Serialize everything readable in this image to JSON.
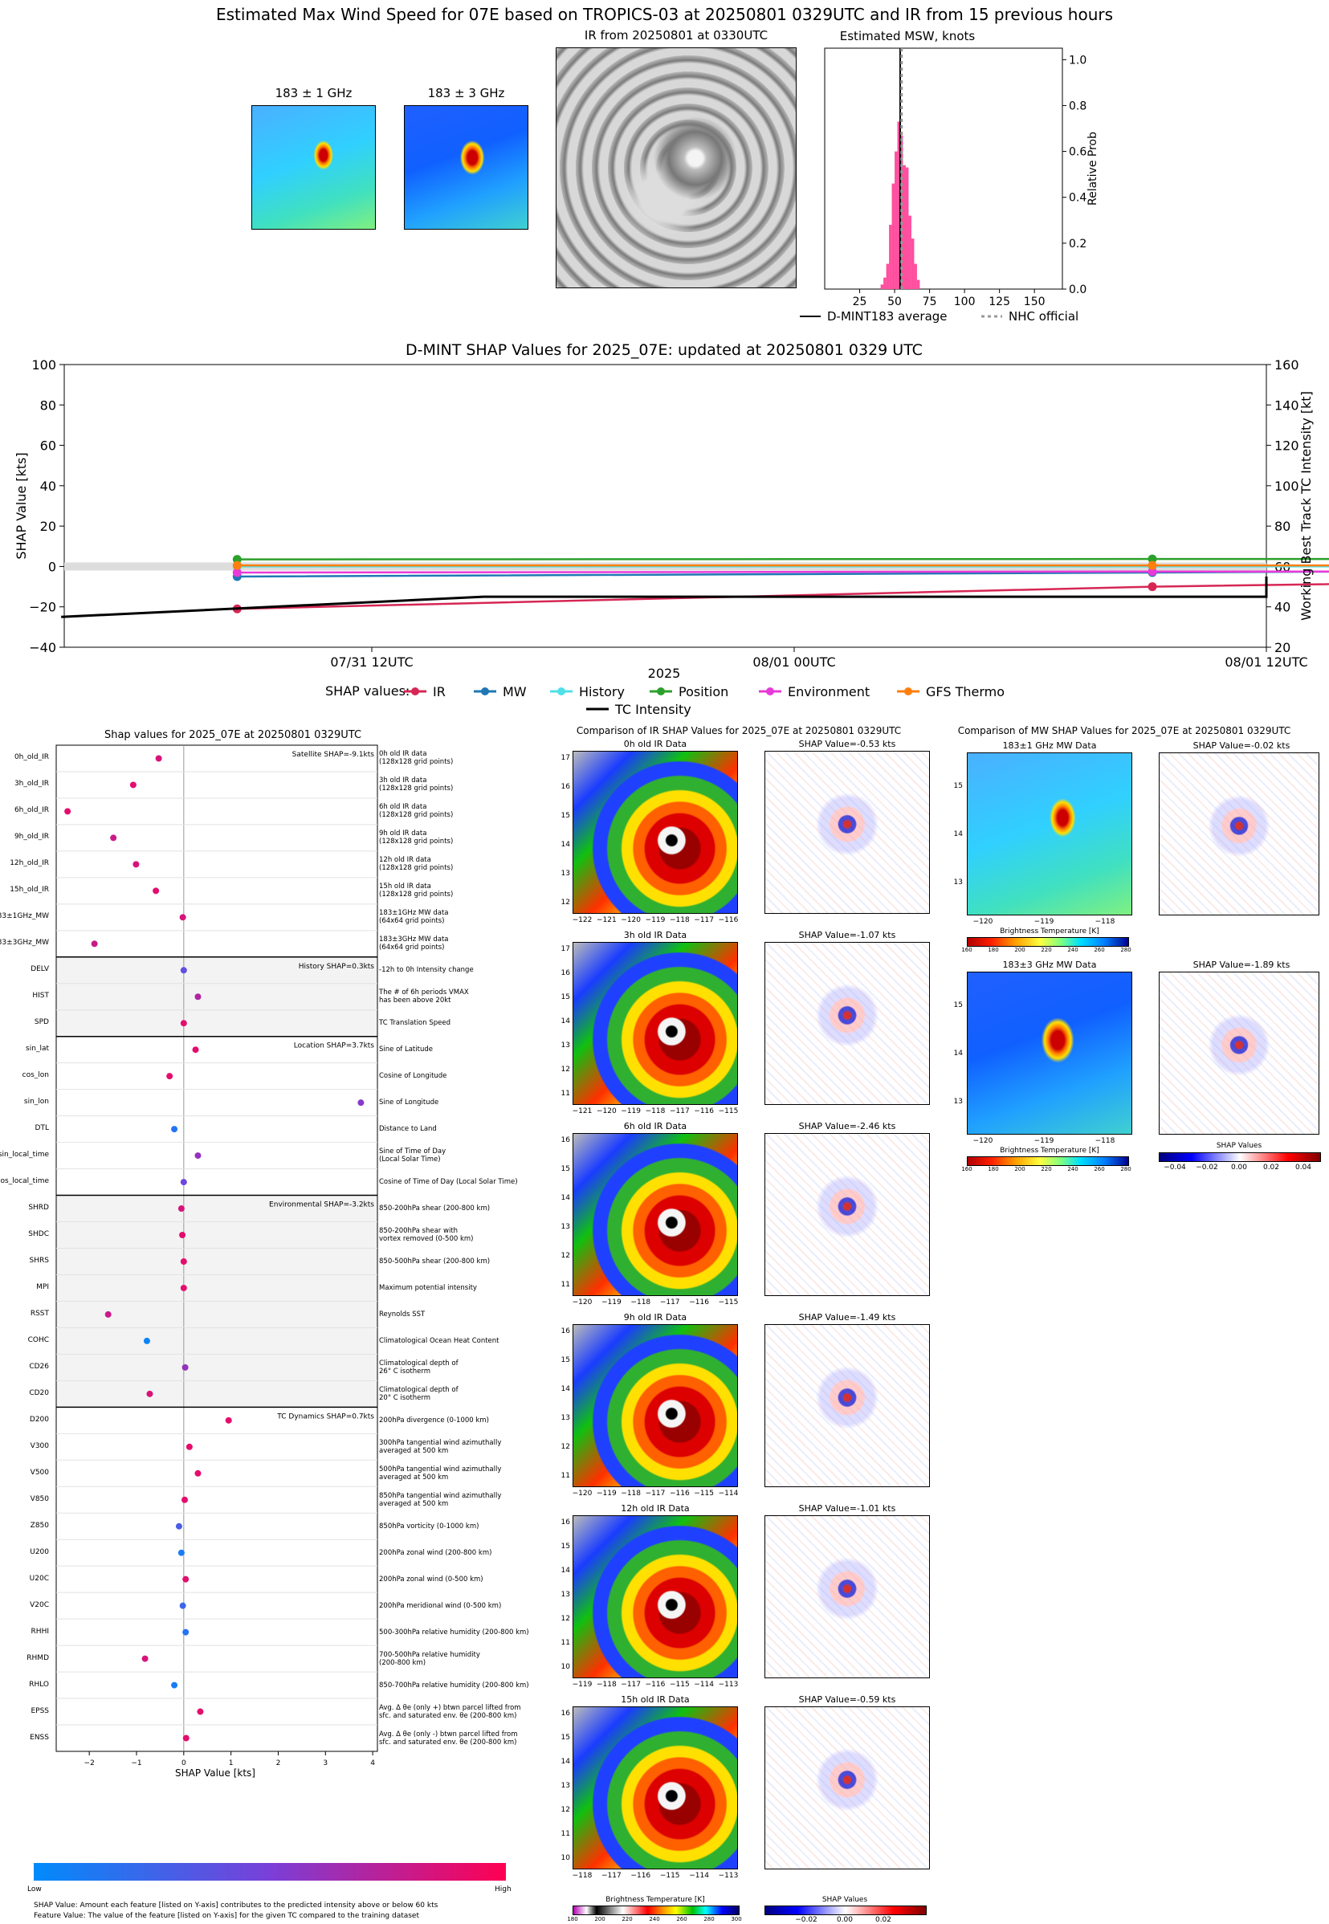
{
  "colors": {
    "IR": "#d62754",
    "MW": "#1f77b4",
    "History": "#4fe0e8",
    "Position": "#2ca02c",
    "Environment": "#e83ad8",
    "GFS Thermo": "#ff7f0e",
    "TC Intensity": "#000000",
    "hist_bar": "#ff4f9e",
    "feature_low": "#008bfb",
    "feature_high": "#ff0052"
  },
  "header": {
    "main_title": "Estimated Max Wind Speed for 07E based on TROPICS-03 at 20250801 0329UTC and IR from 15 previous hours",
    "mw1_title": "183 ± 1 GHz",
    "mw3_title": "183 ± 3 GHz",
    "ir_title": "IR from 20250801 at 0330UTC"
  },
  "histogram": {
    "title": "Estimated MSW, knots",
    "ylabel": "Relative Prob",
    "x_ticks": [
      "25",
      "50",
      "75",
      "100",
      "125",
      "150"
    ],
    "y_ticks": [
      "0.0",
      "0.2",
      "0.4",
      "0.6",
      "0.8",
      "1.0"
    ],
    "legend_avg": "D-MINT183 average",
    "legend_nhc": "NHC official"
  },
  "timeline": {
    "title": "D-MINT SHAP Values for 2025_07E: updated at 20250801 0329 UTC",
    "ylabel_left": "SHAP Value [kts]",
    "ylabel_right": "Working Best Track TC Intensity [kt]",
    "xlabel": "2025",
    "x_ticks": [
      "07/31 12UTC",
      "08/01 00UTC",
      "08/01 12UTC"
    ],
    "y_left_ticks": [
      "100",
      "80",
      "60",
      "40",
      "20",
      "0",
      "−20",
      "−40"
    ],
    "y_right_ticks": [
      "160",
      "140",
      "120",
      "100",
      "80",
      "60",
      "40",
      "20"
    ],
    "legend_prefix": "SHAP values:",
    "legend_labels": [
      "IR",
      "MW",
      "History",
      "Position",
      "Environment",
      "GFS Thermo",
      "TC Intensity"
    ]
  },
  "shap_panel": {
    "title": "Shap values for 2025_07E at 20250801 0329UTC",
    "xlabel": "SHAP Value [kts]",
    "x_ticks": [
      "−2",
      "−1",
      "0",
      "1",
      "2",
      "3",
      "4"
    ],
    "group_labels": [
      "Satellite SHAP=-9.1kts",
      "History SHAP=0.3kts",
      "Location SHAP=3.7kts",
      "Environmental SHAP=-3.2kts",
      "TC Dynamics SHAP=0.7kts"
    ],
    "colorbar_low": "Low",
    "colorbar_high": "High",
    "footnote1": "SHAP Value: Amount each feature [listed on Y-axis] contributes to the predicted intensity above or below 60 kts",
    "footnote2": "Feature Value: The value of the feature [listed on Y-axis] for the given TC compared to the training dataset"
  },
  "ir_compare": {
    "title": "Comparison of IR SHAP Values for 2025_07E at 20250801 0329UTC",
    "rows": [
      {
        "data_title": "0h old IR Data",
        "shap_title": "SHAP Value=-0.53 kts",
        "x_ticks": [
          "−122",
          "−121",
          "−120",
          "−119",
          "−118",
          "−117",
          "−116"
        ],
        "y_ticks": [
          "17",
          "16",
          "15",
          "14",
          "13",
          "12"
        ]
      },
      {
        "data_title": "3h old IR Data",
        "shap_title": "SHAP Value=-1.07 kts",
        "x_ticks": [
          "−121",
          "−120",
          "−119",
          "−118",
          "−117",
          "−116",
          "−115"
        ],
        "y_ticks": [
          "17",
          "16",
          "15",
          "14",
          "13",
          "12",
          "11"
        ]
      },
      {
        "data_title": "6h old IR Data",
        "shap_title": "SHAP Value=-2.46 kts",
        "x_ticks": [
          "−120",
          "−119",
          "−118",
          "−117",
          "−116",
          "−115"
        ],
        "y_ticks": [
          "16",
          "15",
          "14",
          "13",
          "12",
          "11"
        ]
      },
      {
        "data_title": "9h old IR Data",
        "shap_title": "SHAP Value=-1.49 kts",
        "x_ticks": [
          "−120",
          "−119",
          "−118",
          "−117",
          "−116",
          "−115",
          "−114"
        ],
        "y_ticks": [
          "16",
          "15",
          "14",
          "13",
          "12",
          "11"
        ]
      },
      {
        "data_title": "12h old IR Data",
        "shap_title": "SHAP Value=-1.01 kts",
        "x_ticks": [
          "−119",
          "−118",
          "−117",
          "−116",
          "−115",
          "−114",
          "−113"
        ],
        "y_ticks": [
          "16",
          "15",
          "14",
          "13",
          "12",
          "11",
          "10"
        ]
      },
      {
        "data_title": "15h old IR Data",
        "shap_title": "SHAP Value=-0.59 kts",
        "x_ticks": [
          "−118",
          "−117",
          "−116",
          "−115",
          "−114",
          "−113"
        ],
        "y_ticks": [
          "16",
          "15",
          "14",
          "13",
          "12",
          "11",
          "10"
        ]
      }
    ],
    "cbar_label": "Brightness Temperature [K]",
    "cbar_ticks": [
      "180",
      "200",
      "220",
      "240",
      "260",
      "280",
      "300"
    ],
    "shap_cbar_label": "SHAP Values",
    "shap_cbar_ticks": [
      "−0.02",
      "0.00",
      "0.02"
    ]
  },
  "mw_compare": {
    "title": "Comparison of MW SHAP Values for 2025_07E at 20250801 0329UTC",
    "rows": [
      {
        "data_title": "183±1 GHz MW Data",
        "shap_title": "SHAP Value=-0.02 kts"
      },
      {
        "data_title": "183±3 GHz MW Data",
        "shap_title": "SHAP Value=-1.89 kts"
      }
    ],
    "x_ticks": [
      "−120",
      "−119",
      "−118"
    ],
    "y_ticks": [
      "15",
      "14",
      "13"
    ],
    "cbar_label": "Brightness Temperature [K]",
    "cbar_ticks": [
      "160",
      "180",
      "200",
      "220",
      "240",
      "260",
      "280"
    ],
    "shap_cbar_label": "SHAP Values",
    "shap_cbar_ticks": [
      "−0.04",
      "−0.02",
      "0.00",
      "0.02",
      "0.04"
    ]
  },
  "chart_data": [
    {
      "type": "bar",
      "title": "Estimated MSW, knots",
      "ylabel": "Relative Prob",
      "xlim": [
        0,
        170
      ],
      "ylim": [
        0,
        1.05
      ],
      "bins": [
        40,
        42,
        44,
        46,
        48,
        50,
        52,
        54,
        56,
        58,
        60,
        62,
        64,
        66
      ],
      "values": [
        0.02,
        0.05,
        0.11,
        0.28,
        0.46,
        0.6,
        0.73,
        0.67,
        0.54,
        0.53,
        0.32,
        0.22,
        0.11,
        0.04
      ],
      "d_mint_average": 54,
      "nhc_official": 55
    },
    {
      "type": "line",
      "title": "D-MINT SHAP Values for 2025_07E: updated at 20250801 0329 UTC",
      "xlabel": "2025",
      "ylabel": "SHAP Value [kts]",
      "ylim": [
        -40,
        100
      ],
      "y2lim": [
        20,
        160
      ],
      "x_hours_after_20250731_00UTC": [
        10,
        36,
        48,
        54
      ],
      "series": [
        {
          "name": "IR",
          "values": [
            -21,
            -10,
            -7,
            -9
          ]
        },
        {
          "name": "MW",
          "values": [
            -5,
            -3,
            -2,
            -1
          ]
        },
        {
          "name": "History",
          "values": [
            0,
            0,
            0,
            0
          ]
        },
        {
          "name": "Position",
          "values": [
            3.5,
            3.7,
            3.7,
            3.7
          ]
        },
        {
          "name": "Environment",
          "values": [
            -3,
            -2.5,
            -2.5,
            -3
          ]
        },
        {
          "name": "GFS Thermo",
          "values": [
            0.5,
            0.5,
            0.5,
            0.7
          ]
        }
      ],
      "tc_intensity": {
        "name": "TC Intensity",
        "x": [
          5,
          17,
          29,
          41,
          53,
          65
        ],
        "values": [
          35,
          45,
          45,
          45,
          55,
          55
        ]
      }
    },
    {
      "type": "scatter",
      "title": "Shap values for 2025_07E at 20250801 0329UTC",
      "xlabel": "SHAP Value [kts]",
      "xlim": [
        -2.7,
        4.1
      ],
      "features": [
        {
          "name": "0h_old_IR",
          "desc": "0h old IR data\n(128x128 grid points)",
          "shap": -0.53,
          "fv": 0.85
        },
        {
          "name": "3h_old_IR",
          "desc": "3h old IR data\n(128x128 grid points)",
          "shap": -1.07,
          "fv": 0.9
        },
        {
          "name": "6h_old_IR",
          "desc": "6h old IR data\n(128x128 grid points)",
          "shap": -2.46,
          "fv": 0.9
        },
        {
          "name": "9h_old_IR",
          "desc": "9h old IR data\n(128x128 grid points)",
          "shap": -1.49,
          "fv": 0.8
        },
        {
          "name": "12h_old_IR",
          "desc": "12h old IR data\n(128x128 grid points)",
          "shap": -1.01,
          "fv": 0.85
        },
        {
          "name": "15h_old_IR",
          "desc": "15h old IR data\n(128x128 grid points)",
          "shap": -0.59,
          "fv": 0.9
        },
        {
          "name": "183±1GHz_MW",
          "desc": "183±1GHz MW data\n(64x64 grid points)",
          "shap": -0.02,
          "fv": 0.85
        },
        {
          "name": "183±3GHz_MW",
          "desc": "183±3GHz MW data\n(64x64 grid points)",
          "shap": -1.89,
          "fv": 0.8
        },
        {
          "name": "DELV",
          "desc": "-12h to 0h Intensity change",
          "shap": 0.0,
          "fv": 0.4
        },
        {
          "name": "HIST",
          "desc": "The # of 6h periods VMAX\nhas been above 20kt",
          "shap": 0.3,
          "fv": 0.7
        },
        {
          "name": "SPD",
          "desc": "TC Translation Speed",
          "shap": 0.0,
          "fv": 0.9
        },
        {
          "name": "sin_lat",
          "desc": "Sine of Latitude",
          "shap": 0.25,
          "fv": 0.9
        },
        {
          "name": "cos_lon",
          "desc": "Cosine of Longitude",
          "shap": -0.3,
          "fv": 0.9
        },
        {
          "name": "sin_lon",
          "desc": "Sine of Longitude",
          "shap": 3.75,
          "fv": 0.55
        },
        {
          "name": "DTL",
          "desc": "Distance to Land",
          "shap": -0.2,
          "fv": 0.15
        },
        {
          "name": "sin_local_time",
          "desc": "Sine of Time of Day\n(Local Solar Time)",
          "shap": 0.3,
          "fv": 0.6
        },
        {
          "name": "cos_local_time",
          "desc": "Cosine of Time of Day (Local Solar Time)",
          "shap": 0.0,
          "fv": 0.45
        },
        {
          "name": "SHRD",
          "desc": "850-200hPa shear (200-800 km)",
          "shap": -0.05,
          "fv": 0.85
        },
        {
          "name": "SHDC",
          "desc": "850-200hPa shear with\nvortex removed (0-500 km)",
          "shap": -0.03,
          "fv": 0.9
        },
        {
          "name": "SHRS",
          "desc": "850-500hPa shear (200-800 km)",
          "shap": 0.0,
          "fv": 0.9
        },
        {
          "name": "MPI",
          "desc": "Maximum potential intensity",
          "shap": 0.0,
          "fv": 0.9
        },
        {
          "name": "RSST",
          "desc": "Reynolds SST",
          "shap": -1.6,
          "fv": 0.8
        },
        {
          "name": "COHC",
          "desc": "Climatological Ocean Heat Content",
          "shap": -0.78,
          "fv": 0.05
        },
        {
          "name": "CD26",
          "desc": "Climatological depth of\n26° C isotherm",
          "shap": 0.03,
          "fv": 0.6
        },
        {
          "name": "CD20",
          "desc": "Climatological depth of\n20° C isotherm",
          "shap": -0.72,
          "fv": 0.85
        },
        {
          "name": "D200",
          "desc": "200hPa divergence (0-1000 km)",
          "shap": 0.95,
          "fv": 0.9
        },
        {
          "name": "V300",
          "desc": "300hPa tangential wind azimuthally\naveraged at 500 km",
          "shap": 0.12,
          "fv": 0.9
        },
        {
          "name": "V500",
          "desc": "500hPa tangential wind azimuthally\naveraged at 500 km",
          "shap": 0.3,
          "fv": 0.9
        },
        {
          "name": "V850",
          "desc": "850hPa tangential wind azimuthally\naveraged at 500 km",
          "shap": 0.02,
          "fv": 0.9
        },
        {
          "name": "Z850",
          "desc": "850hPa vorticity (0-1000 km)",
          "shap": -0.1,
          "fv": 0.3
        },
        {
          "name": "U200",
          "desc": "200hPa zonal wind (200-800 km)",
          "shap": -0.05,
          "fv": 0.1
        },
        {
          "name": "U20C",
          "desc": "200hPa zonal wind (0-500 km)",
          "shap": 0.04,
          "fv": 0.9
        },
        {
          "name": "V20C",
          "desc": "200hPa meridional wind (0-500 km)",
          "shap": -0.02,
          "fv": 0.25
        },
        {
          "name": "RHHI",
          "desc": "500-300hPa relative humidity (200-800 km)",
          "shap": 0.04,
          "fv": 0.15
        },
        {
          "name": "RHMD",
          "desc": "700-500hPa relative humidity\n(200-800 km)",
          "shap": -0.82,
          "fv": 0.85
        },
        {
          "name": "RHLO",
          "desc": "850-700hPa relative humidity (200-800 km)",
          "shap": -0.2,
          "fv": 0.1
        },
        {
          "name": "EPSS",
          "desc": "Avg. Δ θe (only +) btwn parcel lifted from\nsfc. and saturated env. θe (200-800 km)",
          "shap": 0.35,
          "fv": 0.9
        },
        {
          "name": "ENSS",
          "desc": "Avg. Δ θe (only -) btwn parcel lifted from\nsfc. and saturated env. θe (200-800 km)",
          "shap": 0.05,
          "fv": 0.9
        }
      ]
    }
  ]
}
